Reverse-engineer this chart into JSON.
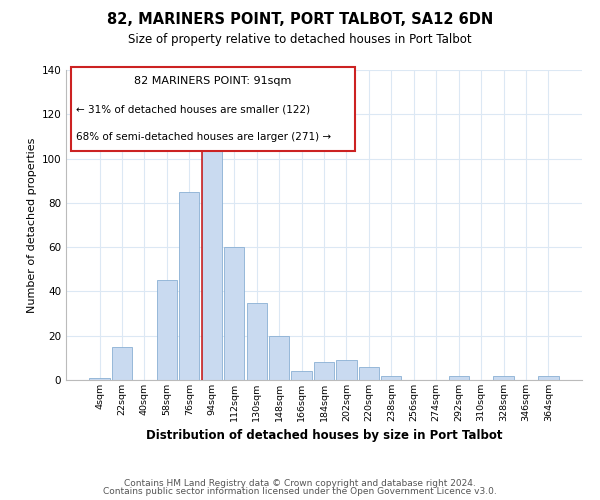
{
  "title": "82, MARINERS POINT, PORT TALBOT, SA12 6DN",
  "subtitle": "Size of property relative to detached houses in Port Talbot",
  "xlabel": "Distribution of detached houses by size in Port Talbot",
  "ylabel": "Number of detached properties",
  "bin_labels": [
    "4sqm",
    "22sqm",
    "40sqm",
    "58sqm",
    "76sqm",
    "94sqm",
    "112sqm",
    "130sqm",
    "148sqm",
    "166sqm",
    "184sqm",
    "202sqm",
    "220sqm",
    "238sqm",
    "256sqm",
    "274sqm",
    "292sqm",
    "310sqm",
    "328sqm",
    "346sqm",
    "364sqm"
  ],
  "bar_values": [
    1,
    15,
    0,
    45,
    85,
    110,
    60,
    35,
    20,
    4,
    8,
    9,
    6,
    2,
    0,
    0,
    2,
    0,
    2,
    0,
    2
  ],
  "bar_color": "#c9daf0",
  "bar_edge_color": "#8ab0d4",
  "vline_index": 5,
  "vline_color": "#cc2222",
  "ylim": [
    0,
    140
  ],
  "yticks": [
    0,
    20,
    40,
    60,
    80,
    100,
    120,
    140
  ],
  "annotation_title": "82 MARINERS POINT: 91sqm",
  "annotation_line1": "← 31% of detached houses are smaller (122)",
  "annotation_line2": "68% of semi-detached houses are larger (271) →",
  "footer1": "Contains HM Land Registry data © Crown copyright and database right 2024.",
  "footer2": "Contains public sector information licensed under the Open Government Licence v3.0.",
  "background_color": "#ffffff",
  "grid_color": "#dce8f4",
  "title_fontsize": 10.5,
  "subtitle_fontsize": 8.5,
  "xlabel_fontsize": 8.5,
  "ylabel_fontsize": 8,
  "footer_fontsize": 6.5
}
